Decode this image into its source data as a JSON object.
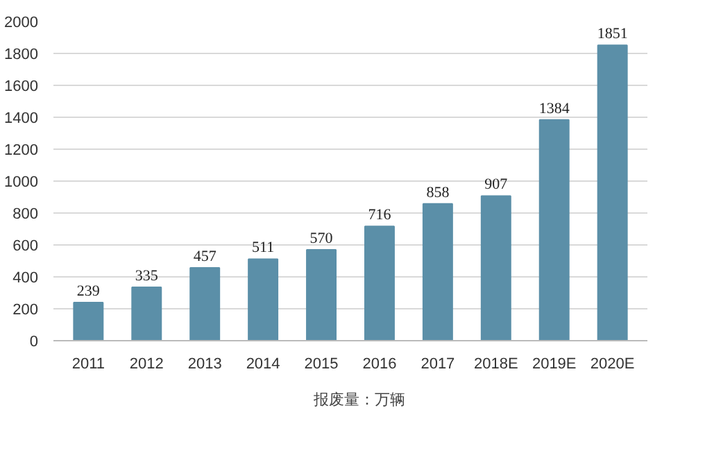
{
  "chart_data": {
    "type": "bar",
    "categories": [
      "2011",
      "2012",
      "2013",
      "2014",
      "2015",
      "2016",
      "2017",
      "2018E",
      "2019E",
      "2020E"
    ],
    "series": [
      {
        "name": "报废量：万辆",
        "color": "#5b8fa8",
        "values": [
          239,
          335,
          457,
          511,
          570,
          716,
          858,
          907,
          1384,
          1851
        ]
      }
    ],
    "ylim": [
      0,
      2000
    ],
    "yticks": [
      0,
      200,
      400,
      600,
      800,
      1000,
      1200,
      1400,
      1600,
      1800,
      2000
    ],
    "grid": "y",
    "legend": "bottom",
    "data_labels": true
  }
}
